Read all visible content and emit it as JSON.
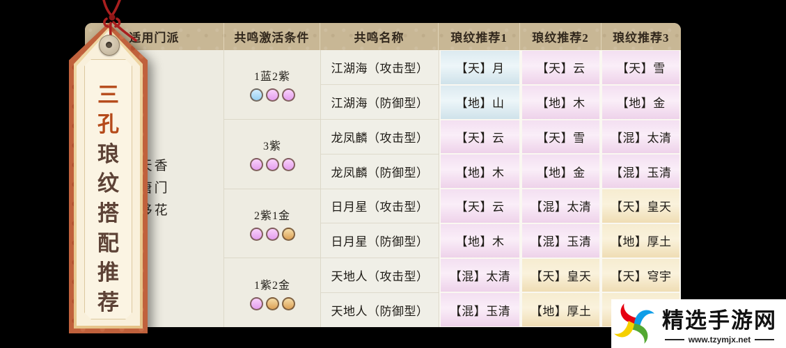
{
  "tag": {
    "chars": [
      {
        "ch": "三",
        "accent": true
      },
      {
        "ch": "孔",
        "accent": true
      },
      {
        "ch": "琅",
        "accent": false
      },
      {
        "ch": "纹",
        "accent": false
      },
      {
        "ch": "搭",
        "accent": false
      },
      {
        "ch": "配",
        "accent": false
      },
      {
        "ch": "推",
        "accent": false
      },
      {
        "ch": "荐",
        "accent": false
      }
    ],
    "accent_color": "#b54a1a",
    "text_color": "#5d4236",
    "string_color": "#a91f1f"
  },
  "table": {
    "headers": [
      "适用门派",
      "共鸣激活条件",
      "共鸣名称",
      "琅纹推荐1",
      "琅纹推荐2",
      "琅纹推荐3"
    ],
    "sects": [
      "天香",
      "唐门",
      "移花"
    ],
    "groups": [
      {
        "condition": "1蓝2紫",
        "slots": [
          "blue",
          "purple",
          "purple"
        ],
        "rows": [
          {
            "name": "江湖海（攻击型）",
            "recs": [
              {
                "text": "【天】月",
                "tone": "blue"
              },
              {
                "text": "【天】云",
                "tone": "pink"
              },
              {
                "text": "【天】雪",
                "tone": "pink"
              }
            ]
          },
          {
            "name": "江湖海（防御型）",
            "recs": [
              {
                "text": "【地】山",
                "tone": "blue"
              },
              {
                "text": "【地】木",
                "tone": "pink"
              },
              {
                "text": "【地】金",
                "tone": "pink"
              }
            ]
          }
        ]
      },
      {
        "condition": "3紫",
        "slots": [
          "purple",
          "purple",
          "purple"
        ],
        "rows": [
          {
            "name": "龙凤麟（攻击型）",
            "recs": [
              {
                "text": "【天】云",
                "tone": "pink"
              },
              {
                "text": "【天】雪",
                "tone": "pink"
              },
              {
                "text": "【混】太清",
                "tone": "pink"
              }
            ]
          },
          {
            "name": "龙凤麟（防御型）",
            "recs": [
              {
                "text": "【地】木",
                "tone": "pink"
              },
              {
                "text": "【地】金",
                "tone": "pink"
              },
              {
                "text": "【混】玉清",
                "tone": "pink"
              }
            ]
          }
        ]
      },
      {
        "condition": "2紫1金",
        "slots": [
          "purple",
          "purple",
          "gold"
        ],
        "rows": [
          {
            "name": "日月星（攻击型）",
            "recs": [
              {
                "text": "【天】云",
                "tone": "pink"
              },
              {
                "text": "【混】太清",
                "tone": "pink"
              },
              {
                "text": "【天】皇天",
                "tone": "cream"
              }
            ]
          },
          {
            "name": "日月星（防御型）",
            "recs": [
              {
                "text": "【地】木",
                "tone": "pink"
              },
              {
                "text": "【混】玉清",
                "tone": "pink"
              },
              {
                "text": "【地】厚土",
                "tone": "cream"
              }
            ]
          }
        ]
      },
      {
        "condition": "1紫2金",
        "slots": [
          "purple",
          "gold",
          "gold"
        ],
        "rows": [
          {
            "name": "天地人（攻击型）",
            "recs": [
              {
                "text": "【混】太清",
                "tone": "pink"
              },
              {
                "text": "【天】皇天",
                "tone": "cream"
              },
              {
                "text": "【天】穹宇",
                "tone": "cream"
              }
            ]
          },
          {
            "name": "天地人（防御型）",
            "recs": [
              {
                "text": "【混】玉清",
                "tone": "pink"
              },
              {
                "text": "【地】厚土",
                "tone": "cream"
              },
              {
                "text": "",
                "tone": "cream"
              }
            ]
          }
        ]
      }
    ]
  },
  "colors": {
    "header_bg": "#c8b795",
    "card_bg": "#eeece2",
    "slot_blue": "#9cd2f3",
    "slot_purple": "#e6a3ef",
    "slot_gold": "#dfa75e",
    "tone_blue": "#d5e7ed",
    "tone_pink": "#f4ddf1",
    "tone_cream": "#f5e8c8"
  },
  "watermark": {
    "site_name": "精选手游网",
    "site_url": "www.tzymjx.net"
  }
}
